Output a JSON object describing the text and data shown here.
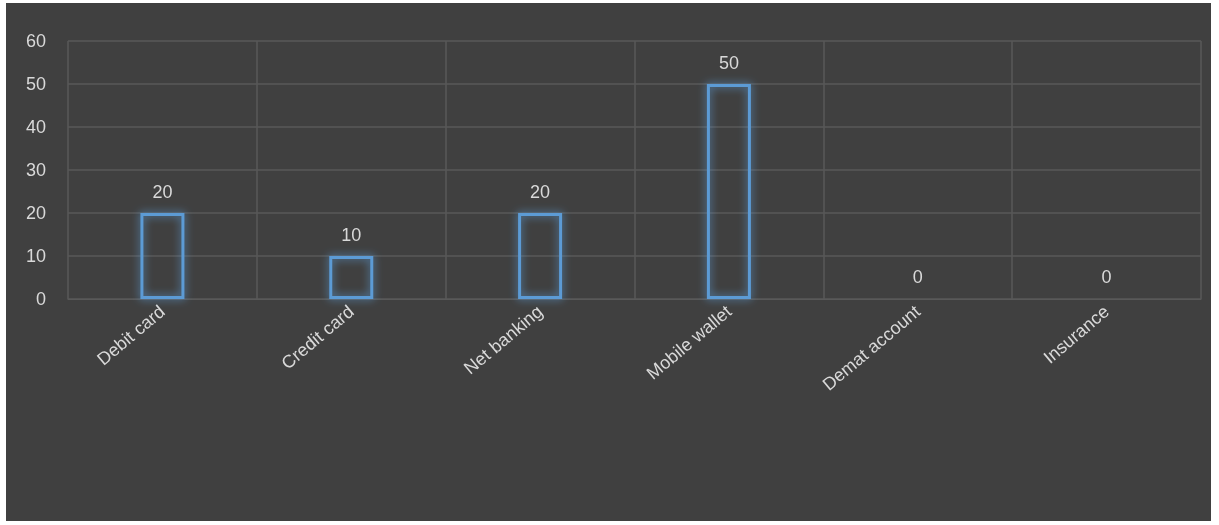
{
  "chart_data": {
    "type": "bar",
    "categories": [
      "Debit card",
      "Credit card",
      "Net banking",
      "Mobile wallet",
      "Demat account",
      "Insurance"
    ],
    "values": [
      20,
      10,
      20,
      50,
      0,
      0
    ],
    "color": "#5b9bd5",
    "ylim": [
      0,
      60
    ],
    "yticks": [
      0,
      10,
      20,
      30,
      40,
      50,
      60
    ],
    "grid": true,
    "data_labels": true
  }
}
